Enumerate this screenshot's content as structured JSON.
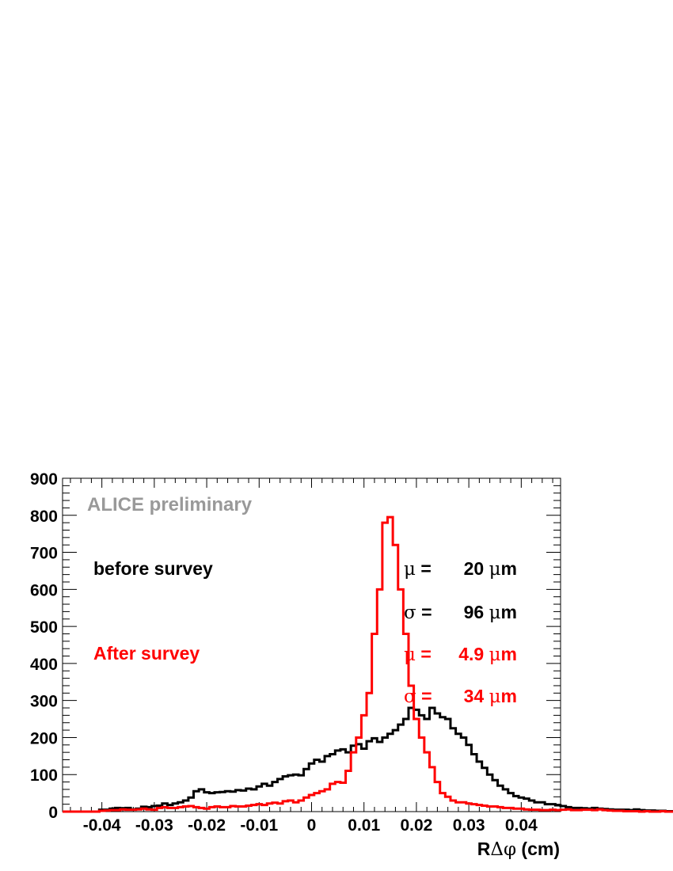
{
  "chart_data": {
    "type": "histogram",
    "xlabel_prefix": "R",
    "xlabel_symbols": "Δφ",
    "xlabel_suffix": " (cm)",
    "ylabel": "",
    "xlim": [
      -0.0475,
      0.0475
    ],
    "ylim": [
      0,
      900
    ],
    "bin_start": -0.0475,
    "bin_width": 0.001,
    "x_ticks": [
      "-0.04",
      "-0.03",
      "-0.02",
      "-0.01",
      "0",
      "0.01",
      "0.02",
      "0.03",
      "0.04"
    ],
    "y_ticks": [
      "0",
      "100",
      "200",
      "300",
      "400",
      "500",
      "600",
      "700",
      "800",
      "900"
    ],
    "grid": false,
    "annotation": "ALICE preliminary",
    "series": [
      {
        "label": "before survey",
        "color": "#000000",
        "values": [
          0,
          0,
          0,
          0,
          0,
          0,
          0,
          5,
          5,
          8,
          10,
          9,
          10,
          6,
          8,
          13,
          12,
          15,
          16,
          22,
          18,
          22,
          25,
          30,
          38,
          55,
          60,
          52,
          50,
          52,
          53,
          55,
          54,
          58,
          57,
          62,
          60,
          68,
          75,
          70,
          80,
          88,
          95,
          98,
          100,
          98,
          115,
          130,
          140,
          135,
          150,
          155,
          165,
          168,
          160,
          178,
          182,
          170,
          190,
          198,
          188,
          200,
          210,
          220,
          235,
          250,
          280,
          275,
          260,
          250,
          280,
          265,
          255,
          250,
          225,
          210,
          200,
          180,
          155,
          135,
          118,
          100,
          85,
          70,
          60,
          50,
          42,
          38,
          35,
          30,
          25,
          25,
          20,
          20,
          17,
          15,
          12,
          10,
          10,
          9,
          8,
          10,
          8,
          7,
          6,
          5,
          5,
          5,
          4,
          6,
          4,
          3,
          3,
          2,
          2,
          1,
          1,
          1,
          1,
          1,
          1,
          0,
          0,
          0,
          0
        ]
      },
      {
        "label": "After survey",
        "color": "#ff0000",
        "values": [
          0,
          0,
          0,
          0,
          0,
          0,
          0,
          2,
          3,
          4,
          4,
          6,
          5,
          5,
          6,
          8,
          6,
          5,
          10,
          12,
          10,
          10,
          12,
          14,
          15,
          12,
          10,
          8,
          12,
          14,
          12,
          12,
          15,
          14,
          14,
          16,
          18,
          20,
          18,
          22,
          24,
          22,
          28,
          30,
          25,
          30,
          38,
          45,
          50,
          55,
          60,
          75,
          80,
          78,
          110,
          160,
          200,
          260,
          320,
          480,
          600,
          780,
          795,
          720,
          600,
          480,
          340,
          250,
          200,
          160,
          120,
          80,
          50,
          40,
          30,
          25,
          25,
          22,
          20,
          18,
          16,
          14,
          14,
          12,
          10,
          10,
          8,
          8,
          6,
          5,
          5,
          4,
          4,
          5,
          4,
          5,
          6,
          4,
          4,
          5,
          5,
          4,
          6,
          4,
          3,
          2,
          2,
          1,
          1,
          1,
          0,
          1,
          0,
          0,
          1,
          0,
          0,
          0,
          0,
          0,
          0,
          0,
          0,
          0,
          0
        ]
      }
    ],
    "stats": [
      {
        "symbol": "μ",
        "eq": " =",
        "value": "20",
        "unit_symbol": "μ",
        "unit": "m",
        "color": "#000000"
      },
      {
        "symbol": "σ",
        "eq": " =",
        "value": "96",
        "unit_symbol": "μ",
        "unit": "m",
        "color": "#000000"
      },
      {
        "symbol": "μ",
        "eq": " =",
        "value": "4.9",
        "unit_symbol": "μ",
        "unit": "m",
        "color": "#ff0000"
      },
      {
        "symbol": "σ",
        "eq": " =",
        "value": "34",
        "unit_symbol": "μ",
        "unit": "m",
        "color": "#ff0000"
      }
    ]
  }
}
